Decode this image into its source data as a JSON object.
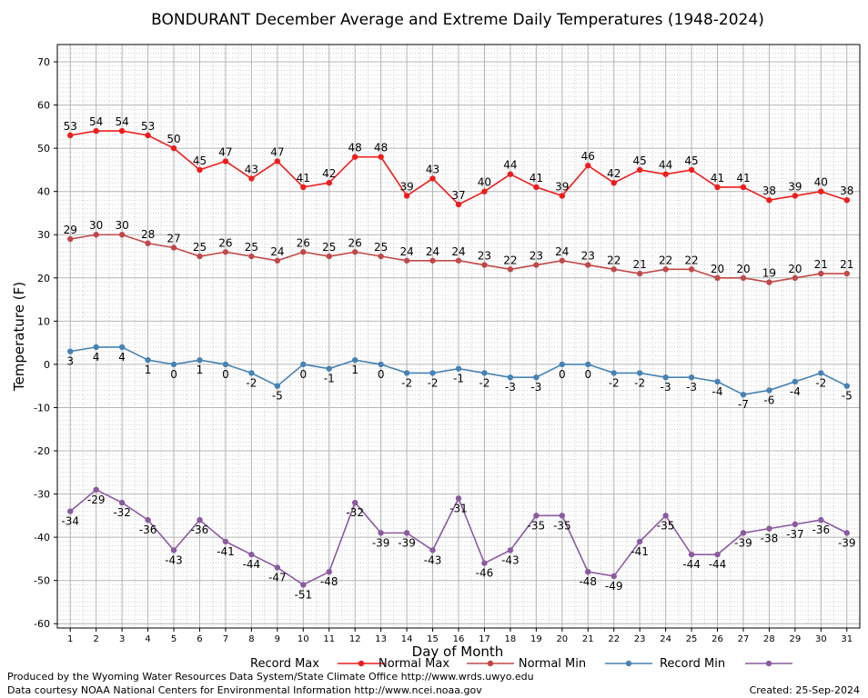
{
  "footer": {
    "produced_by": "Produced by the Wyoming Water Resources Data System/State Climate Office http://www.wrds.uwyo.edu",
    "data_courtesy": "Data courtesy NOAA National Centers for Environmental Information http://www.ncei.noaa.gov",
    "created": "Created:  25-Sep-2024"
  },
  "chart_data": {
    "type": "line",
    "title": "BONDURANT December Average and Extreme Daily Temperatures (1948-2024)",
    "xlabel": "Day of Month",
    "ylabel": "Temperature (F)",
    "xlim": [
      0.5,
      31.5
    ],
    "ylim": [
      -61,
      74
    ],
    "x": [
      1,
      2,
      3,
      4,
      5,
      6,
      7,
      8,
      9,
      10,
      11,
      12,
      13,
      14,
      15,
      16,
      17,
      18,
      19,
      20,
      21,
      22,
      23,
      24,
      25,
      26,
      27,
      28,
      29,
      30,
      31
    ],
    "y_ticks": [
      -60,
      -50,
      -40,
      -30,
      -20,
      -10,
      0,
      10,
      20,
      30,
      40,
      50,
      60,
      70
    ],
    "grid": true,
    "legend_position": "bottom",
    "series": [
      {
        "name": "Record Max",
        "color": "#ee1c1c",
        "label_position": "above",
        "values": [
          53,
          54,
          54,
          53,
          50,
          45,
          47,
          43,
          47,
          41,
          42,
          48,
          48,
          39,
          43,
          37,
          40,
          44,
          41,
          39,
          46,
          42,
          45,
          44,
          45,
          41,
          41,
          38,
          39,
          40,
          38
        ]
      },
      {
        "name": "Normal Max",
        "color": "#c04848",
        "label_position": "above",
        "values": [
          29,
          30,
          30,
          28,
          27,
          25,
          26,
          25,
          24,
          26,
          25,
          26,
          25,
          24,
          24,
          24,
          23,
          22,
          23,
          24,
          23,
          22,
          21,
          22,
          22,
          20,
          20,
          19,
          20,
          21,
          21
        ]
      },
      {
        "name": "Normal Min",
        "color": "#4682b4",
        "label_position": "below",
        "values": [
          3,
          4,
          4,
          1,
          0,
          1,
          0,
          -2,
          -5,
          0,
          -1,
          1,
          0,
          -2,
          -2,
          -1,
          -2,
          -3,
          -3,
          0,
          0,
          -2,
          -2,
          -3,
          -3,
          -4,
          -7,
          -6,
          -4,
          -2,
          -5
        ]
      },
      {
        "name": "Record Min",
        "color": "#8a5aa0",
        "label_position": "below",
        "values": [
          -34,
          -29,
          -32,
          -36,
          -43,
          -36,
          -41,
          -44,
          -47,
          -51,
          -48,
          -32,
          -39,
          -39,
          -43,
          -31,
          -46,
          -43,
          -35,
          -35,
          -48,
          -49,
          -41,
          -35,
          -44,
          -44,
          -39,
          -38,
          -37,
          -36,
          -39
        ]
      }
    ]
  }
}
